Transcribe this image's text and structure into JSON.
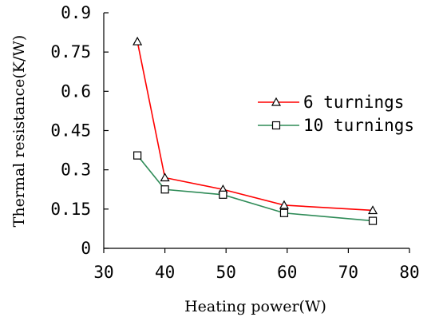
{
  "chart_data": {
    "type": "line",
    "xlabel": "Heating power(W)",
    "ylabel": "Thermal resistance(K/W)",
    "xlim": [
      30,
      80
    ],
    "ylim": [
      0,
      0.9
    ],
    "x_ticks": [
      "30",
      "40",
      "50",
      "60",
      "70",
      "80"
    ],
    "y_ticks": [
      "0",
      "0.15",
      "0.3",
      "0.45",
      "0.6",
      "0.75",
      "0.9"
    ],
    "grid": false,
    "legend_position": "right",
    "series": [
      {
        "name": "6 turnings",
        "color": "#ff0000",
        "marker": "triangle",
        "x": [
          35.5,
          40,
          49.5,
          59.5,
          74
        ],
        "y": [
          0.79,
          0.27,
          0.225,
          0.165,
          0.145
        ]
      },
      {
        "name": "10 turnings",
        "color": "#2e8b57",
        "marker": "square",
        "x": [
          35.5,
          40,
          49.5,
          59.5,
          74
        ],
        "y": [
          0.355,
          0.225,
          0.205,
          0.135,
          0.105
        ]
      }
    ]
  }
}
